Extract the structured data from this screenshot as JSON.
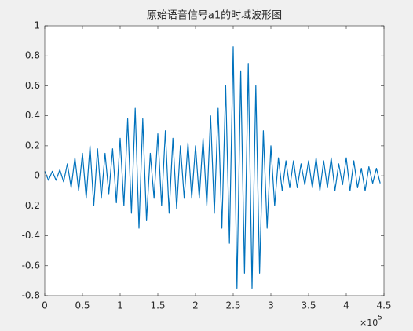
{
  "chart_data": {
    "type": "line",
    "title": "原始语音信号a1的时域波形图",
    "x": [
      0,
      5000,
      10000,
      15000,
      20000,
      25000,
      30000,
      35000,
      40000,
      45000,
      50000,
      55000,
      60000,
      65000,
      70000,
      75000,
      80000,
      85000,
      90000,
      95000,
      100000,
      105000,
      110000,
      115000,
      120000,
      125000,
      130000,
      135000,
      140000,
      145000,
      150000,
      155000,
      160000,
      165000,
      170000,
      175000,
      180000,
      185000,
      190000,
      195000,
      200000,
      205000,
      210000,
      215000,
      220000,
      225000,
      230000,
      235000,
      240000,
      245000,
      250000,
      255000,
      260000,
      265000,
      270000,
      275000,
      280000,
      285000,
      290000,
      295000,
      300000,
      305000,
      310000,
      315000,
      320000,
      325000,
      330000,
      335000,
      340000,
      345000,
      350000,
      355000,
      360000,
      365000,
      370000,
      375000,
      380000,
      385000,
      390000,
      395000,
      400000,
      405000,
      410000,
      415000,
      420000,
      425000,
      430000,
      435000,
      440000,
      445000
    ],
    "values": [
      0.03,
      -0.03,
      0.03,
      -0.03,
      0.04,
      -0.04,
      0.08,
      -0.08,
      0.12,
      -0.1,
      0.15,
      -0.15,
      0.2,
      -0.2,
      0.18,
      -0.15,
      0.15,
      -0.12,
      0.18,
      -0.18,
      0.25,
      -0.2,
      0.38,
      -0.25,
      0.45,
      -0.35,
      0.38,
      -0.3,
      0.15,
      -0.15,
      0.28,
      -0.2,
      0.3,
      -0.25,
      0.25,
      -0.22,
      0.2,
      -0.15,
      0.22,
      -0.15,
      0.2,
      -0.15,
      0.25,
      -0.2,
      0.4,
      -0.25,
      0.45,
      -0.35,
      0.6,
      -0.45,
      0.86,
      -0.75,
      0.7,
      -0.65,
      0.75,
      -0.75,
      0.6,
      -0.65,
      0.3,
      -0.35,
      0.2,
      -0.2,
      0.12,
      -0.1,
      0.1,
      -0.08,
      0.1,
      -0.08,
      0.08,
      -0.06,
      0.1,
      -0.08,
      0.12,
      -0.1,
      0.1,
      -0.08,
      0.12,
      -0.1,
      0.08,
      -0.06,
      0.12,
      -0.1,
      0.1,
      -0.08,
      0.05,
      -0.1,
      0.06,
      -0.05,
      0.05,
      -0.05
    ],
    "color": "#0072bd",
    "xlim": [
      0,
      450000
    ],
    "xticks": [
      0,
      {
        "value": 50000,
        "label": "0.5"
      },
      {
        "value": 100000,
        "label": "1"
      },
      {
        "value": 150000,
        "label": "1.5"
      },
      {
        "value": 200000,
        "label": "2"
      },
      {
        "value": 250000,
        "label": "2.5"
      },
      {
        "value": 300000,
        "label": "3"
      },
      {
        "value": 350000,
        "label": "3.5"
      },
      {
        "value": 400000,
        "label": "4"
      },
      {
        "value": 450000,
        "label": "4.5"
      }
    ],
    "x_multiplier": "×10",
    "x_multiplier_exponent": "5",
    "ylim": [
      -0.8,
      1
    ],
    "yticks": [
      -0.8,
      -0.6,
      -0.4,
      -0.2,
      0,
      0.2,
      0.4,
      0.6,
      0.8,
      1
    ],
    "grid": false
  }
}
